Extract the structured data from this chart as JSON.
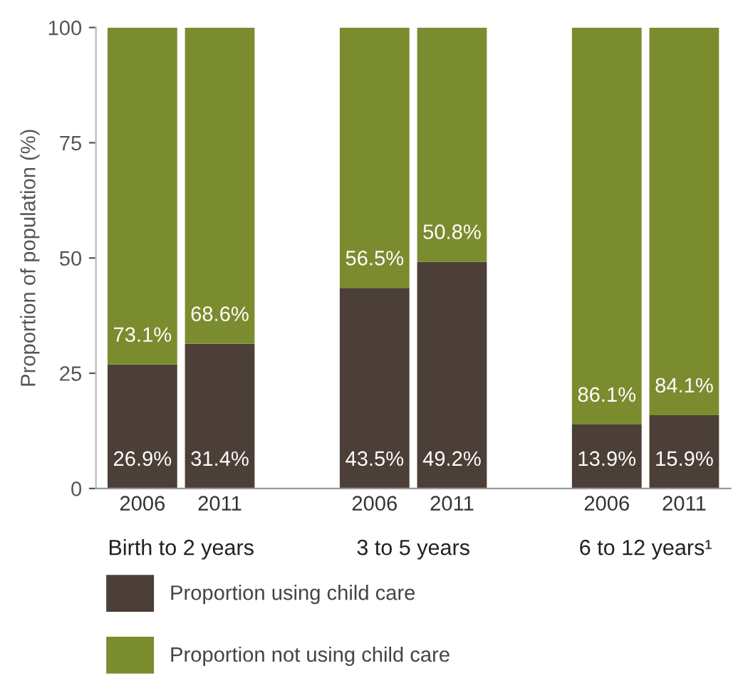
{
  "chart_data": {
    "type": "bar",
    "stacked": true,
    "ylabel": "Proportion of population (%)",
    "categories": [
      "2006",
      "2011",
      null,
      "2006",
      "2011",
      null,
      "2006",
      "2011"
    ],
    "series": [
      {
        "name": "Proportion using child care",
        "color": "#4b3f37",
        "values": [
          26.9,
          31.4,
          null,
          43.5,
          49.2,
          null,
          13.9,
          15.9
        ],
        "value_labels": [
          "26.9%",
          "31.4%",
          null,
          "43.5%",
          "49.2%",
          null,
          "13.9%",
          "15.9%"
        ]
      },
      {
        "name": "Proportion not using child care",
        "color": "#7b8c2f",
        "values": [
          73.1,
          68.6,
          null,
          56.5,
          50.8,
          null,
          86.1,
          84.1
        ],
        "value_labels": [
          "73.1%",
          "68.6%",
          null,
          "56.5%",
          "50.8%",
          null,
          "86.1%",
          "84.1%"
        ]
      }
    ],
    "annotations": [
      "Birth to 2 years",
      "3 to 5 years",
      "6 to 12 years¹"
    ],
    "ylim": [
      0,
      100
    ],
    "yticks": [
      0,
      25,
      50,
      75,
      100
    ],
    "grid": false,
    "legend": "bottom"
  }
}
